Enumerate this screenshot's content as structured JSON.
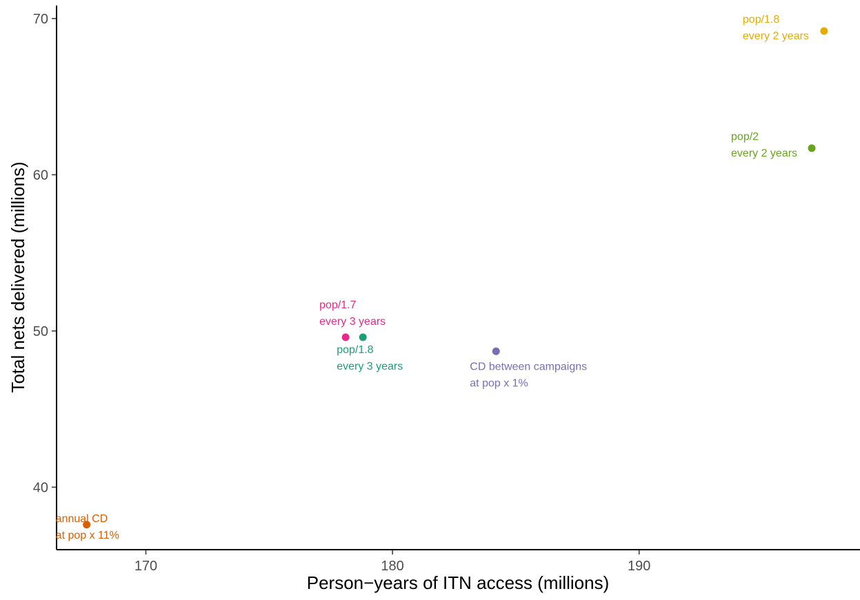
{
  "chart_data": {
    "type": "scatter",
    "title": "",
    "xlabel": "Person−years of ITN access (millions)",
    "ylabel": "Total nets delivered (millions)",
    "xlim": [
      166.4,
      199.0
    ],
    "ylim": [
      36.2,
      71.0
    ],
    "xticks": [
      170,
      180,
      190
    ],
    "yticks": [
      40,
      50,
      60,
      70
    ],
    "grid": false,
    "legend": "none",
    "points": [
      {
        "x": 197.5,
        "y": 69.2,
        "label_lines": [
          "pop/1.8",
          "every 2 years"
        ],
        "color": "#E6AB02"
      },
      {
        "x": 197.0,
        "y": 61.7,
        "label_lines": [
          "pop/2",
          "every 2 years"
        ],
        "color": "#66A61E"
      },
      {
        "x": 178.1,
        "y": 49.6,
        "label_lines": [
          "pop/1.7",
          "every 3 years"
        ],
        "color": "#E7298A"
      },
      {
        "x": 178.8,
        "y": 49.6,
        "label_lines": [
          "pop/1.8",
          "every 3 years"
        ],
        "color": "#1B9E77"
      },
      {
        "x": 184.2,
        "y": 48.7,
        "label_lines": [
          "CD between campaigns",
          "at pop x 1%"
        ],
        "color": "#7570B3"
      },
      {
        "x": 167.6,
        "y": 37.6,
        "label_lines": [
          "annual CD",
          "at pop x 11%"
        ],
        "color": "#D95F02"
      }
    ]
  }
}
